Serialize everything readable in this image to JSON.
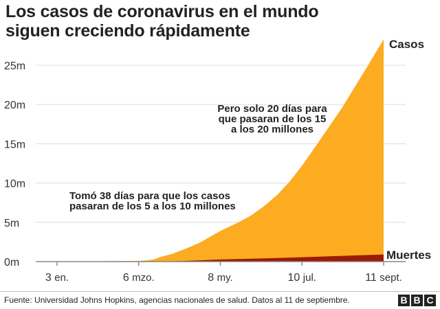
{
  "title_lines": [
    "Los casos de coronavirus en el mundo",
    "siguen creciendo rápidamente"
  ],
  "source": "Fuente: Universidad Johns Hopkins, agencias nacionales de salud. Datos al 11 de septiembre.",
  "logo": "BBC",
  "chart_data": {
    "type": "area",
    "title": "Los casos de coronavirus en el mundo siguen creciendo rápidamente",
    "xlabel": "",
    "ylabel": "",
    "x_unit": "days since 3 Jan 2020",
    "xlim": [
      0,
      252
    ],
    "ylim": [
      0,
      28.5
    ],
    "grid": true,
    "y_ticks": [
      0,
      5,
      10,
      15,
      20,
      25
    ],
    "y_tick_labels": [
      "0m",
      "5m",
      "10m",
      "15m",
      "20m",
      "25m"
    ],
    "x_ticks": [
      0,
      63,
      126,
      189,
      252
    ],
    "x_tick_labels": [
      [
        "3",
        "en."
      ],
      [
        "6",
        "mzo."
      ],
      [
        "8",
        "my."
      ],
      [
        "10",
        "jul."
      ],
      [
        "11",
        "sept."
      ]
    ],
    "series": [
      {
        "name": "Casos",
        "color": "#fdab20",
        "x": [
          0,
          20,
          40,
          55,
          63,
          70,
          75,
          80,
          89,
          100,
          110,
          126,
          140,
          150,
          160,
          170,
          180,
          189,
          200,
          210,
          220,
          230,
          240,
          252
        ],
        "values": [
          0,
          0.01,
          0.07,
          0.09,
          0.1,
          0.17,
          0.3,
          0.6,
          1.0,
          1.7,
          2.4,
          3.9,
          5.0,
          5.9,
          7.1,
          8.5,
          10.3,
          12.2,
          14.8,
          17.2,
          19.6,
          22.3,
          25.0,
          28.3
        ]
      },
      {
        "name": "Muertes",
        "color": "#9b1b05",
        "x": [
          0,
          55,
          63,
          75,
          89,
          100,
          126,
          150,
          189,
          220,
          252
        ],
        "values": [
          0,
          0.003,
          0.004,
          0.01,
          0.05,
          0.1,
          0.27,
          0.37,
          0.56,
          0.73,
          0.91
        ]
      }
    ],
    "annotations": [
      {
        "lines": [
          "Pero solo 20 días para",
          "que pasaran de los 15",
          "a los 20 millones"
        ]
      },
      {
        "lines": [
          "Tomó 38 días para que los casos",
          "pasaran de los 5 a los 10 millones"
        ]
      }
    ]
  }
}
